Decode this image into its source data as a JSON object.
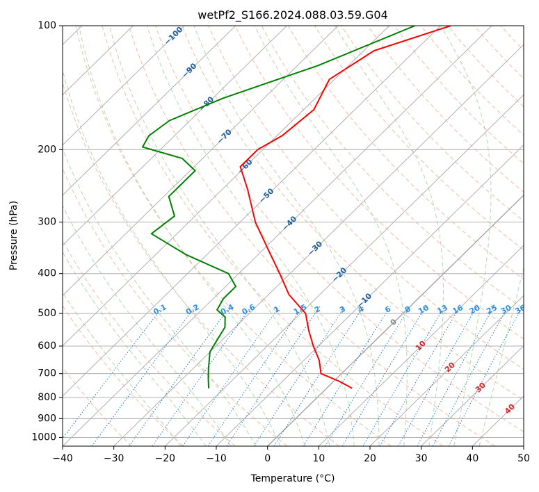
{
  "chart_data": {
    "type": "skew-t",
    "title": "wetPf2_S166.2024.088.03.59.G04",
    "xlabel": "Temperature (°C)",
    "ylabel": "Pressure (hPa)",
    "xlim": [
      -40,
      50
    ],
    "ylim": [
      1050,
      100
    ],
    "x_ticks": [
      "−40",
      "−30",
      "−20",
      "−10",
      "0",
      "10",
      "20",
      "30",
      "40",
      "50"
    ],
    "y_ticks": [
      "100",
      "200",
      "300",
      "400",
      "500",
      "600",
      "700",
      "800",
      "900",
      "1000"
    ],
    "grid": true,
    "y_scale": "log",
    "series": [
      {
        "role": "temperature",
        "color": "#ff0000",
        "points": [
          [
            100,
            -48
          ],
          [
            115,
            -58
          ],
          [
            135,
            -61
          ],
          [
            160,
            -58
          ],
          [
            185,
            -59
          ],
          [
            200,
            -61
          ],
          [
            220,
            -61
          ],
          [
            250,
            -55
          ],
          [
            300,
            -47
          ],
          [
            350,
            -39
          ],
          [
            400,
            -32
          ],
          [
            450,
            -26
          ],
          [
            500,
            -19
          ],
          [
            550,
            -15
          ],
          [
            600,
            -11
          ],
          [
            650,
            -7
          ],
          [
            700,
            -4
          ],
          [
            730,
            1
          ],
          [
            760,
            5
          ]
        ]
      },
      {
        "role": "dewpoint",
        "color": "#008000",
        "points": [
          [
            100,
            -55
          ],
          [
            125,
            -66
          ],
          [
            150,
            -78
          ],
          [
            170,
            -84
          ],
          [
            185,
            -85
          ],
          [
            197,
            -84
          ],
          [
            210,
            -74
          ],
          [
            225,
            -69
          ],
          [
            260,
            -69
          ],
          [
            290,
            -64
          ],
          [
            320,
            -65
          ],
          [
            360,
            -54
          ],
          [
            400,
            -42
          ],
          [
            430,
            -38
          ],
          [
            460,
            -38
          ],
          [
            490,
            -37
          ],
          [
            510,
            -34
          ],
          [
            540,
            -32
          ],
          [
            580,
            -31
          ],
          [
            620,
            -30
          ],
          [
            680,
            -27
          ],
          [
            720,
            -25
          ],
          [
            760,
            -23
          ]
        ]
      }
    ],
    "isotherm_labels": [
      "−100",
      "−90",
      "−80",
      "−70",
      "−60",
      "−50",
      "−40",
      "−30",
      "−20",
      "−10",
      "0",
      "10",
      "20",
      "30",
      "40"
    ],
    "mixing_ratio_labels": [
      "0.1",
      "0.2",
      "0.4",
      "0.6",
      "1",
      "1.5",
      "2",
      "3",
      "4",
      "6",
      "8",
      "10",
      "13",
      "16",
      "20",
      "25",
      "30",
      "36"
    ]
  }
}
